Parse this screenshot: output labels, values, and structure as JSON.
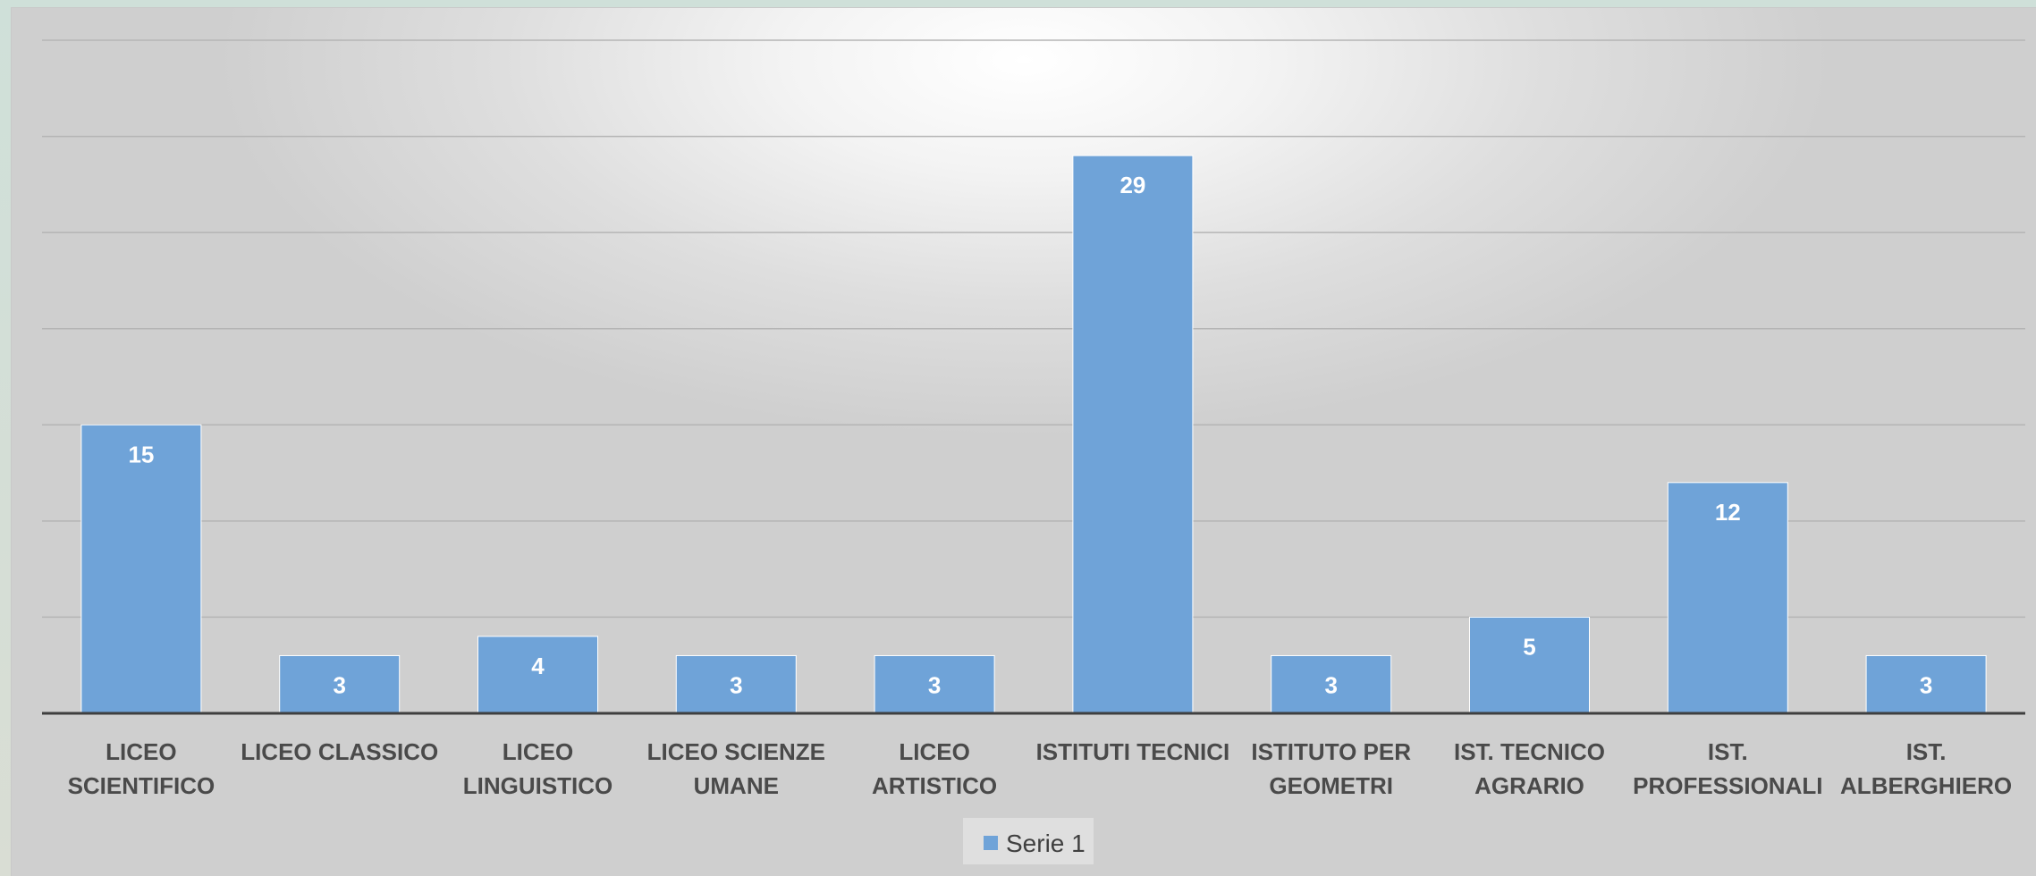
{
  "chart_data": {
    "type": "bar",
    "categories": [
      "LICEO SCIENTIFICO",
      "LICEO CLASSICO",
      "LICEO LINGUISTICO",
      "LICEO SCIENZE UMANE",
      "LICEO ARTISTICO",
      "ISTITUTI TECNICI",
      "ISTITUTO PER GEOMETRI",
      "IST. TECNICO AGRARIO",
      "IST. PROFESSIONALI",
      "IST. ALBERGHIERO"
    ],
    "category_label_lines": [
      [
        "LICEO",
        "SCIENTIFICO"
      ],
      [
        "LICEO CLASSICO"
      ],
      [
        "LICEO",
        "LINGUISTICO"
      ],
      [
        "LICEO SCIENZE",
        "UMANE"
      ],
      [
        "LICEO",
        "ARTISTICO"
      ],
      [
        "ISTITUTI TECNICI"
      ],
      [
        "ISTITUTO PER",
        "GEOMETRI"
      ],
      [
        "IST. TECNICO",
        "AGRARIO"
      ],
      [
        "IST.",
        "PROFESSIONALI"
      ],
      [
        "IST.",
        "ALBERGHIERO"
      ]
    ],
    "series": [
      {
        "name": "Serie 1",
        "values": [
          15,
          3,
          4,
          3,
          3,
          29,
          3,
          5,
          12,
          3
        ]
      }
    ],
    "ylim": [
      0,
      35
    ],
    "y_gridline_step": 5,
    "grid": true,
    "axis_tick_labels_shown": false,
    "data_labels": "inside-end",
    "legend_position": "bottom",
    "bar_color": "#6fa3d8",
    "title": "",
    "xlabel": "",
    "ylabel": ""
  },
  "legend": {
    "label": "Serie 1",
    "swatch_color": "#6fa3d8"
  }
}
